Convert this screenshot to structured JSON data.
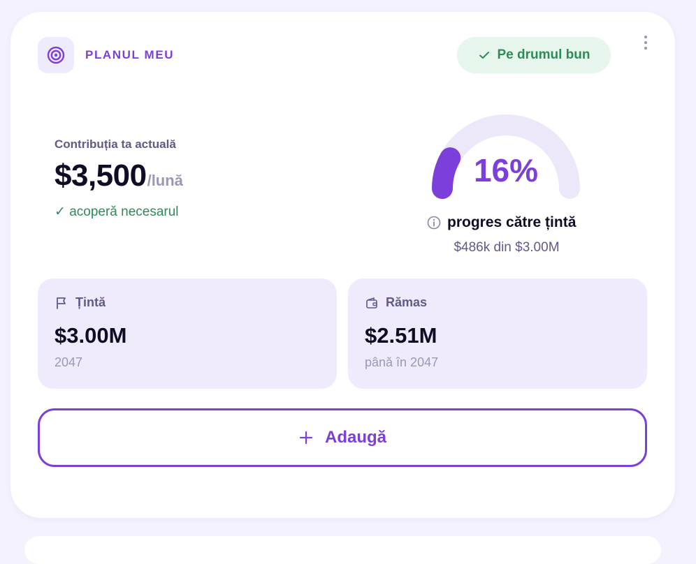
{
  "plan": {
    "title": "PLANUL MEU",
    "status_label": "Pe drumul bun"
  },
  "contribution": {
    "label": "Contribuția ta actuală",
    "value": "$3,500",
    "unit": "/lună",
    "note": "✓ acoperă necesarul"
  },
  "progress": {
    "percent_label": "16%",
    "percent_value": 0.16,
    "caption": "progres către țintă",
    "detail": "$486k din $3.00M"
  },
  "target": {
    "label": "Țintă",
    "value": "$3.00M",
    "sub": "2047"
  },
  "remaining": {
    "label": "Rămas",
    "value": "$2.51M",
    "sub": "până în 2047"
  },
  "add_button": {
    "label": "Adaugă"
  },
  "colors": {
    "accent": "#7c3fdc",
    "success": "#2e8b57",
    "success_bg": "#e6f6ec",
    "tile_bg": "#efebfc",
    "track": "#ece8f9"
  },
  "icons": {
    "logo": "target-icon",
    "status": "check-icon",
    "menu": "more-vertical-icon",
    "info": "info-icon",
    "target": "flag-icon",
    "remaining": "wallet-icon",
    "add": "plus-icon"
  }
}
